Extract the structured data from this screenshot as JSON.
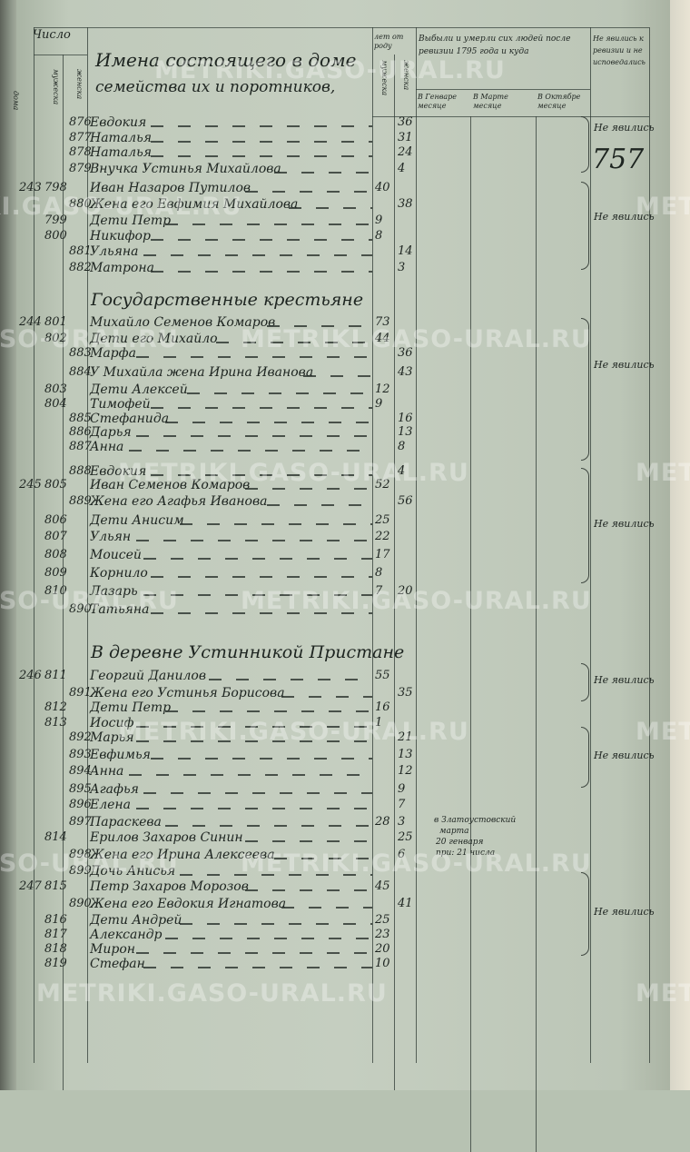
{
  "header": {
    "count_label": "Число",
    "household_label": "дома",
    "male_label": "мужеска",
    "female_label": "женска",
    "names_title_line1": "Имена состоящего в доме",
    "names_title_line2": "семейства их и поротников,",
    "age_label": "лет от роду",
    "age_male": "мужеска",
    "age_female": "женска",
    "departed_label": "Выбыли и умерли сих людей после ревизии 1795 года и куда",
    "departed_jan": "В Генваре месяце",
    "departed_mar": "В Марте месяце",
    "departed_oct": "В Октябре месяце",
    "absent_label": "Не явились к ревизии и не исповедались"
  },
  "page_number": "757",
  "watermark": "METRIKI.GASO-URAL.RU",
  "sections": [
    "Государственные крестьяне",
    "В деревне Устинникой Пристане"
  ],
  "rows": [
    {
      "household": "",
      "male_no": "",
      "female_no": "876",
      "name": "Евдокия",
      "age_m": "",
      "age_f": "36"
    },
    {
      "household": "",
      "male_no": "",
      "female_no": "877",
      "name": "Наталья",
      "age_m": "",
      "age_f": "31"
    },
    {
      "household": "",
      "male_no": "",
      "female_no": "878",
      "name": "Наталья",
      "age_m": "",
      "age_f": "24"
    },
    {
      "household": "",
      "male_no": "",
      "female_no": "879",
      "name": "Внучка Устинья Михайлова",
      "age_m": "",
      "age_f": "4"
    },
    {
      "household": "243",
      "male_no": "798",
      "female_no": "",
      "name": "Иван Назаров Путилов",
      "age_m": "40",
      "age_f": ""
    },
    {
      "household": "",
      "male_no": "",
      "female_no": "880",
      "name": "Жена его Евфимия Михайлова",
      "age_m": "",
      "age_f": "38"
    },
    {
      "household": "",
      "male_no": "799",
      "female_no": "",
      "name": "Дети Петр",
      "age_m": "9",
      "age_f": ""
    },
    {
      "household": "",
      "male_no": "800",
      "female_no": "",
      "name": "Никифор",
      "age_m": "8",
      "age_f": ""
    },
    {
      "household": "",
      "male_no": "",
      "female_no": "881",
      "name": "Ульяна",
      "age_m": "",
      "age_f": "14"
    },
    {
      "household": "",
      "male_no": "",
      "female_no": "882",
      "name": "Матрона",
      "age_m": "",
      "age_f": "3"
    },
    {
      "household": "244",
      "male_no": "801",
      "female_no": "",
      "name": "Михайло Семенов Комаров",
      "age_m": "73",
      "age_f": ""
    },
    {
      "household": "",
      "male_no": "802",
      "female_no": "",
      "name": "Дети его Михайло",
      "age_m": "44",
      "age_f": ""
    },
    {
      "household": "",
      "male_no": "",
      "female_no": "883",
      "name": "Марфа",
      "age_m": "",
      "age_f": "36"
    },
    {
      "household": "",
      "male_no": "",
      "female_no": "884",
      "name": "У Михайла жена Ирина Иванова",
      "age_m": "",
      "age_f": "43"
    },
    {
      "household": "",
      "male_no": "803",
      "female_no": "",
      "name": "Дети Алексей",
      "age_m": "12",
      "age_f": ""
    },
    {
      "household": "",
      "male_no": "804",
      "female_no": "",
      "name": "Тимофей",
      "age_m": "9",
      "age_f": ""
    },
    {
      "household": "",
      "male_no": "",
      "female_no": "885",
      "name": "Стефанида",
      "age_m": "",
      "age_f": "16"
    },
    {
      "household": "",
      "male_no": "",
      "female_no": "886",
      "name": "Дарья",
      "age_m": "",
      "age_f": "13"
    },
    {
      "household": "",
      "male_no": "",
      "female_no": "887",
      "name": "Анна",
      "age_m": "",
      "age_f": "8"
    },
    {
      "household": "",
      "male_no": "",
      "female_no": "888",
      "name": "Евдокия",
      "age_m": "",
      "age_f": "4"
    },
    {
      "household": "245",
      "male_no": "805",
      "female_no": "",
      "name": "Иван Семенов Комаров",
      "age_m": "52",
      "age_f": ""
    },
    {
      "household": "",
      "male_no": "",
      "female_no": "889",
      "name": "Жена его Агафья Иванова",
      "age_m": "",
      "age_f": "56"
    },
    {
      "household": "",
      "male_no": "806",
      "female_no": "",
      "name": "Дети Анисим",
      "age_m": "25",
      "age_f": ""
    },
    {
      "household": "",
      "male_no": "807",
      "female_no": "",
      "name": "Ульян",
      "age_m": "22",
      "age_f": ""
    },
    {
      "household": "",
      "male_no": "808",
      "female_no": "",
      "name": "Моисей",
      "age_m": "17",
      "age_f": ""
    },
    {
      "household": "",
      "male_no": "809",
      "female_no": "",
      "name": "Корнило",
      "age_m": "8",
      "age_f": ""
    },
    {
      "household": "",
      "male_no": "810",
      "female_no": "",
      "name": "Лазарь",
      "age_m": "7",
      "age_f": "20"
    },
    {
      "household": "",
      "male_no": "",
      "female_no": "890",
      "name": "Татьяна",
      "age_m": "",
      "age_f": ""
    },
    {
      "household": "246",
      "male_no": "811",
      "female_no": "",
      "name": "Георгий Данилов",
      "age_m": "55",
      "age_f": ""
    },
    {
      "household": "",
      "male_no": "",
      "female_no": "891",
      "name": "Жена его Устинья Борисова",
      "age_m": "",
      "age_f": "35"
    },
    {
      "household": "",
      "male_no": "812",
      "female_no": "",
      "name": "Дети Петр",
      "age_m": "16",
      "age_f": ""
    },
    {
      "household": "",
      "male_no": "813",
      "female_no": "",
      "name": "Иосиф",
      "age_m": "1",
      "age_f": ""
    },
    {
      "household": "",
      "male_no": "",
      "female_no": "892",
      "name": "Марья",
      "age_m": "",
      "age_f": "21"
    },
    {
      "household": "",
      "male_no": "",
      "female_no": "893",
      "name": "Евфимья",
      "age_m": "",
      "age_f": "13"
    },
    {
      "household": "",
      "male_no": "",
      "female_no": "894",
      "name": "Анна",
      "age_m": "",
      "age_f": "12"
    },
    {
      "household": "",
      "male_no": "",
      "female_no": "895",
      "name": "Агафья",
      "age_m": "",
      "age_f": "9"
    },
    {
      "household": "",
      "male_no": "",
      "female_no": "896",
      "name": "Елена",
      "age_m": "",
      "age_f": "7"
    },
    {
      "household": "",
      "male_no": "",
      "female_no": "897",
      "name": "Параскева",
      "age_m": "28",
      "age_f": "3"
    },
    {
      "household": "",
      "male_no": "814",
      "female_no": "",
      "name": "Ерилов Захаров Синин",
      "age_m": "",
      "age_f": "25"
    },
    {
      "household": "",
      "male_no": "",
      "female_no": "898",
      "name": "Жена его Ирина Алексеева",
      "age_m": "",
      "age_f": "6"
    },
    {
      "household": "",
      "male_no": "",
      "female_no": "899",
      "name": "Дочь Анисья",
      "age_m": "",
      "age_f": ""
    },
    {
      "household": "247",
      "male_no": "815",
      "female_no": "",
      "name": "Петр Захаров Морозов",
      "age_m": "45",
      "age_f": ""
    },
    {
      "household": "",
      "male_no": "",
      "female_no": "890",
      "name": "Жена его Евдокия Игнатова",
      "age_m": "",
      "age_f": "41"
    },
    {
      "household": "",
      "male_no": "816",
      "female_no": "",
      "name": "Дети Андрей",
      "age_m": "25",
      "age_f": ""
    },
    {
      "household": "",
      "male_no": "817",
      "female_no": "",
      "name": "Александр",
      "age_m": "23",
      "age_f": ""
    },
    {
      "household": "",
      "male_no": "818",
      "female_no": "",
      "name": "Мирон",
      "age_m": "20",
      "age_f": ""
    },
    {
      "household": "",
      "male_no": "819",
      "female_no": "",
      "name": "Стефан",
      "age_m": "10",
      "age_f": ""
    }
  ],
  "notes": {
    "departure_line1": "в Златоустовский",
    "departure_line2": "марта",
    "departure_line3": "20 генваря",
    "departure_line4": "при: 21 числа",
    "absent": "Не явились"
  }
}
